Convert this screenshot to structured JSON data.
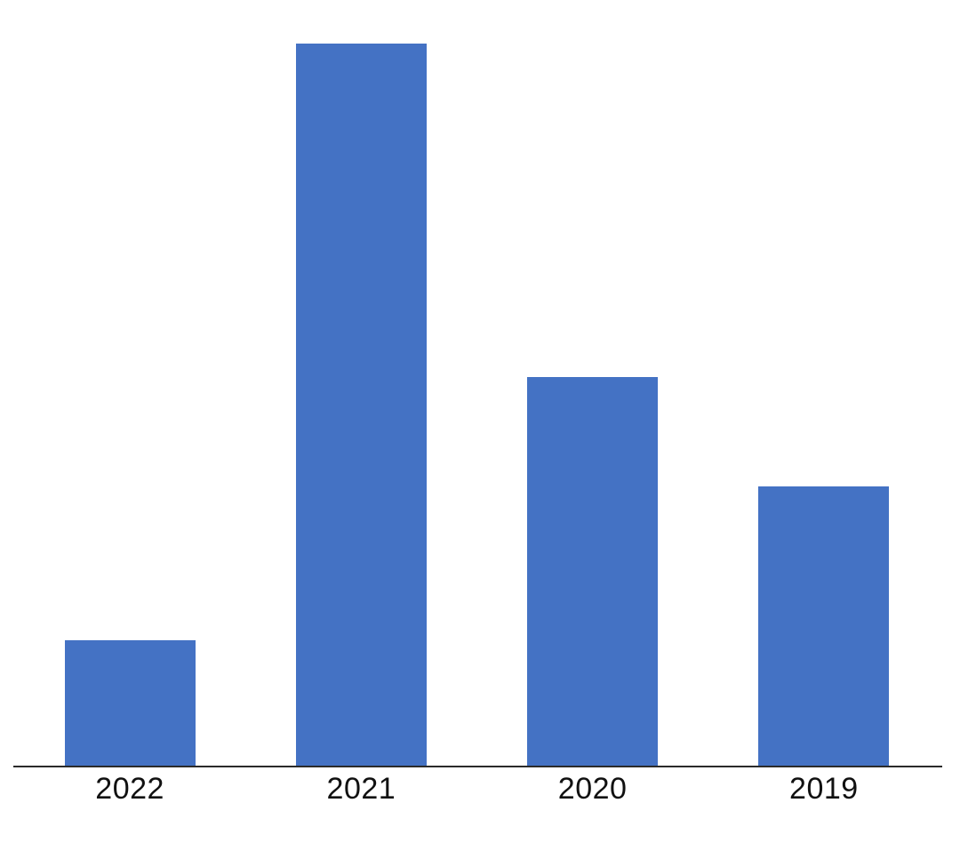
{
  "chart_data": {
    "type": "bar",
    "categories": [
      "2022",
      "2021",
      "2020",
      "2019"
    ],
    "values": [
      17.4,
      100,
      53.8,
      38.6
    ],
    "values_estimated": true,
    "title": "",
    "xlabel": "",
    "ylabel": "",
    "ylim": [
      0,
      106
    ],
    "grid": false,
    "legend": "none",
    "y_axis_visible": false,
    "bar_color": "#4472C4",
    "axis_line_color": "#2b2b2b",
    "label_color": "#111111",
    "background_color": "#ffffff"
  }
}
